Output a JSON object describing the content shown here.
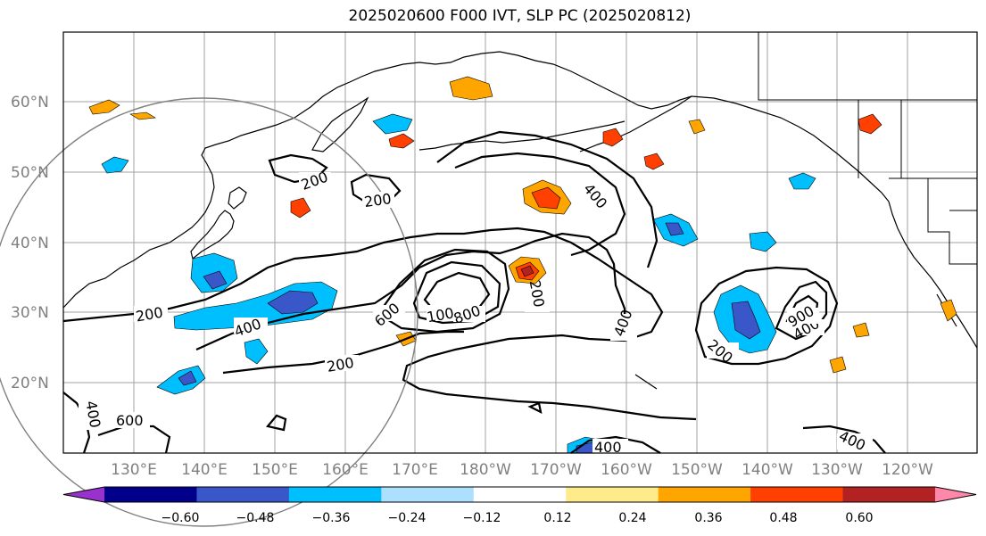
{
  "title": "2025020600 F000 IVT, SLP PC (2025020812)",
  "map": {
    "lat_labels": [
      "60°N",
      "50°N",
      "40°N",
      "30°N",
      "20°N"
    ],
    "lon_labels": [
      "130°E",
      "140°E",
      "150°E",
      "160°E",
      "170°E",
      "180°W",
      "170°W",
      "160°W",
      "150°W",
      "140°W",
      "130°W",
      "120°W"
    ]
  },
  "contour_labels": [
    "200",
    "200",
    "400",
    "200",
    "600",
    "1000",
    "800",
    "200",
    "400",
    "200",
    "400",
    "400",
    "900",
    "200",
    "400",
    "400",
    "600",
    "400"
  ],
  "colorbar": {
    "ticks": [
      "−0.60",
      "−0.48",
      "−0.36",
      "−0.24",
      "−0.12",
      "0.12",
      "0.24",
      "0.36",
      "0.48",
      "0.60"
    ],
    "colors": [
      "#9932CC",
      "#00008B",
      "#3A57C9",
      "#00BFFF",
      "#ADDFFF",
      "#FFFFFF",
      "#FFEB8A",
      "#FFA500",
      "#FF4000",
      "#B22222",
      "#FF88AA"
    ]
  }
}
